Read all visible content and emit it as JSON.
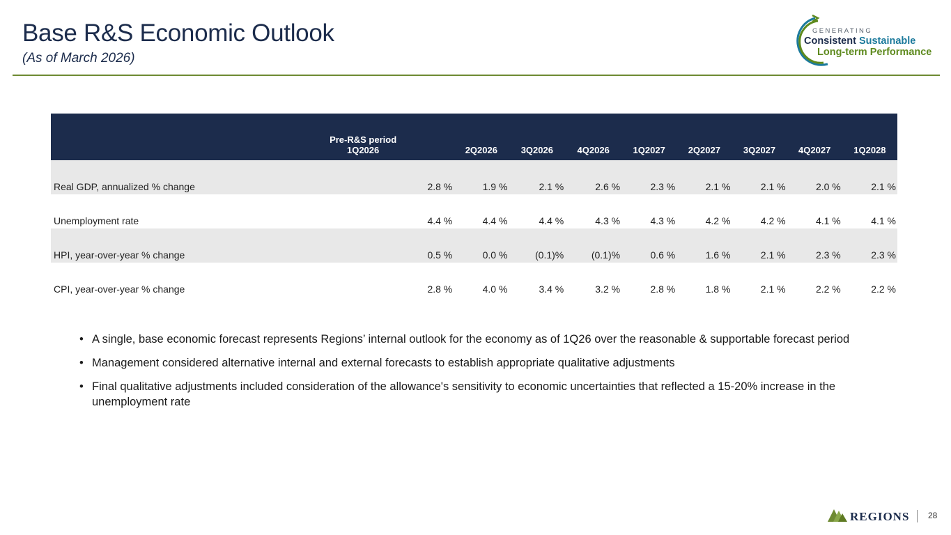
{
  "header": {
    "title": "Base R&S Economic Outlook",
    "subtitle": "(As of March 2026)"
  },
  "logo": {
    "line1": "GENERATING",
    "line2a": "Consistent",
    "line2b": "Sustainable",
    "line3": "Long-term Performance"
  },
  "table": {
    "pre_period_label": "Pre-R&S period",
    "columns": [
      "1Q2026",
      "2Q2026",
      "3Q2026",
      "4Q2026",
      "1Q2027",
      "2Q2027",
      "3Q2027",
      "4Q2027",
      "1Q2028"
    ],
    "rows": [
      {
        "label": "Real GDP, annualized % change",
        "values": [
          "2.8 %",
          "1.9 %",
          "2.1 %",
          "2.6 %",
          "2.3 %",
          "2.1 %",
          "2.1 %",
          "2.0 %",
          "2.1 %"
        ]
      },
      {
        "label": "Unemployment rate",
        "values": [
          "4.4 %",
          "4.4 %",
          "4.4 %",
          "4.3 %",
          "4.3 %",
          "4.2 %",
          "4.2 %",
          "4.1 %",
          "4.1 %"
        ]
      },
      {
        "label": "HPI, year-over-year % change",
        "values": [
          "0.5 %",
          "0.0 %",
          "(0.1)%",
          "(0.1)%",
          "0.6 %",
          "1.6 %",
          "2.1 %",
          "2.3 %",
          "2.3 %"
        ]
      },
      {
        "label": "CPI, year-over-year % change",
        "values": [
          "2.8 %",
          "4.0 %",
          "3.4 %",
          "3.2 %",
          "2.8 %",
          "1.8 %",
          "2.1 %",
          "2.2 %",
          "2.2 %"
        ]
      }
    ]
  },
  "bullets": [
    "A single, base economic forecast represents Regions’ internal outlook for the economy as of 1Q26 over the reasonable & supportable forecast period",
    "Management considered alternative internal and external forecasts to establish appropriate qualitative adjustments",
    "Final qualitative adjustments included consideration of the allowance's sensitivity to economic uncertainties that reflected a 15-20% increase in the unemployment rate"
  ],
  "footer": {
    "brand": "REGIONS",
    "page_number": "28"
  },
  "colors": {
    "navy": "#1c2c4c",
    "green": "#6e8a32",
    "teal": "#1c7a9c",
    "row_shade": "#e8e8e8"
  }
}
